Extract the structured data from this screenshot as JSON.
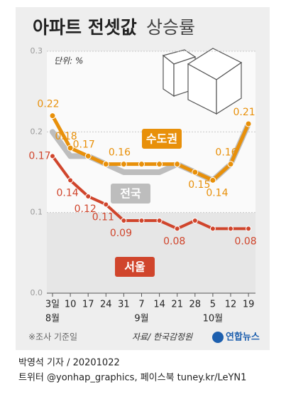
{
  "chart_data": {
    "type": "line",
    "title": "아파트 전셋값",
    "subtitle": "상승률",
    "unit_note": "단위: %",
    "categories": [
      "3일",
      "10",
      "17",
      "24",
      "31",
      "7",
      "14",
      "21",
      "28",
      "5",
      "12",
      "19"
    ],
    "months": [
      "8월",
      null,
      null,
      null,
      null,
      "9월",
      null,
      null,
      null,
      "10월",
      null,
      null
    ],
    "ylim": [
      0,
      0.3
    ],
    "yticks": [
      {
        "value": 0,
        "label": "0.0"
      },
      0.1,
      0.2,
      0.3
    ],
    "grid": true,
    "series": [
      {
        "name": "전국",
        "color": "#bdbdbd",
        "values": [
          0.2,
          0.17,
          0.17,
          0.16,
          0.15,
          0.15,
          0.15,
          0.16,
          0.15,
          0.14,
          0.16,
          0.21
        ],
        "value_labels": [
          null,
          null,
          null,
          null,
          null,
          null,
          null,
          null,
          null,
          null,
          null,
          null
        ]
      },
      {
        "name": "수도권",
        "color": "#e8900a",
        "values": [
          0.22,
          0.18,
          0.17,
          0.16,
          0.16,
          0.16,
          0.16,
          0.16,
          0.15,
          0.14,
          0.16,
          0.21
        ],
        "value_labels": [
          "0.22",
          "0.18",
          "0.17",
          null,
          "0.16",
          null,
          null,
          null,
          "0.15",
          "0.14",
          "0.16",
          "0.21"
        ]
      },
      {
        "name": "서울",
        "color": "#d0452c",
        "values": [
          0.17,
          0.14,
          0.12,
          0.11,
          0.09,
          0.09,
          0.09,
          0.08,
          0.09,
          0.08,
          0.08,
          0.08
        ],
        "value_labels": [
          "0.17",
          "0.14",
          "0.12",
          "0.11",
          "0.09",
          null,
          null,
          "0.08",
          null,
          null,
          null,
          "0.08"
        ]
      }
    ],
    "footnote": "※조사 기준일",
    "source": "자료/ 한국감정원",
    "agency": "연합뉴스",
    "byline": "박영석 기자 / 20201022",
    "social": "트위터 @yonhap_graphics, 페이스북 tuney.kr/LeYN1"
  }
}
